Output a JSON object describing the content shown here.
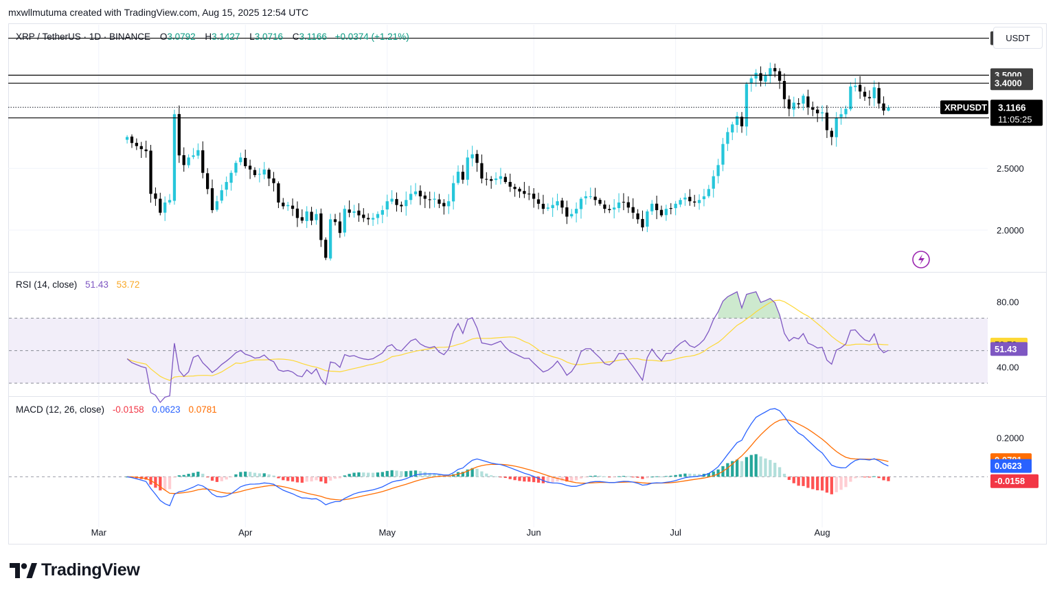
{
  "header": {
    "credit": "mxwllmutuma created with TradingView.com, Aug 15, 2025 12:54 UTC"
  },
  "legend": {
    "symbol": "XRP / TetherUS · 1D · BINANCE",
    "o_label": "O",
    "o": "3.0792",
    "h_label": "H",
    "h": "3.1427",
    "l_label": "L",
    "l": "3.0716",
    "c_label": "C",
    "c": "3.1166",
    "change": "+0.0374 (+1.21%)"
  },
  "price_scale": {
    "unit": "USDT"
  },
  "branding": {
    "name": "TradingView",
    "icon": "tradingview-logo-icon"
  },
  "chart_data": [
    {
      "type": "candlestick",
      "pane": "price",
      "y_scale": "log",
      "ylim": [
        1.72,
        4.2
      ],
      "x_range": [
        "2025-02-10",
        "2025-09-05"
      ],
      "last_candle_date": "2025-08-15",
      "y_ticks": [
        "2.0000",
        "2.5000"
      ],
      "x_ticks": [
        {
          "label": "Mar",
          "date": "2025-03-01"
        },
        {
          "label": "Apr",
          "date": "2025-04-01"
        },
        {
          "label": "May",
          "date": "2025-05-01"
        },
        {
          "label": "Jun",
          "date": "2025-06-01"
        },
        {
          "label": "Jul",
          "date": "2025-07-01"
        },
        {
          "label": "Aug",
          "date": "2025-08-01"
        }
      ],
      "horizontal_levels": [
        {
          "value": 4.0,
          "label": "4.0000"
        },
        {
          "value": 3.5,
          "label": "3.5000"
        },
        {
          "value": 3.4,
          "label": "3.4000"
        },
        {
          "value": 3.0,
          "label": "3.0000"
        }
      ],
      "current_price": {
        "value": 3.1166,
        "symbol_label": "XRPUSDT",
        "label": "3.1166",
        "countdown": "11:05:25"
      },
      "colors": {
        "up": "#26c6da",
        "down": "#000000",
        "levels": "#000000"
      },
      "closes": [
        2.8,
        2.74,
        2.71,
        2.68,
        2.66,
        2.28,
        2.24,
        2.13,
        2.21,
        2.23,
        3.04,
        2.62,
        2.53,
        2.6,
        2.62,
        2.67,
        2.46,
        2.32,
        2.15,
        2.22,
        2.31,
        2.38,
        2.46,
        2.55,
        2.6,
        2.52,
        2.49,
        2.44,
        2.45,
        2.49,
        2.41,
        2.37,
        2.21,
        2.18,
        2.19,
        2.16,
        2.09,
        2.07,
        2.14,
        2.07,
        2.12,
        1.93,
        1.81,
        2.08,
        2.06,
        1.98,
        2.16,
        2.13,
        2.14,
        2.11,
        2.09,
        2.08,
        2.09,
        2.12,
        2.15,
        2.22,
        2.24,
        2.19,
        2.18,
        2.23,
        2.28,
        2.3,
        2.26,
        2.24,
        2.23,
        2.24,
        2.2,
        2.18,
        2.22,
        2.37,
        2.47,
        2.4,
        2.6,
        2.63,
        2.55,
        2.41,
        2.4,
        2.39,
        2.41,
        2.43,
        2.38,
        2.34,
        2.32,
        2.3,
        2.28,
        2.28,
        2.24,
        2.2,
        2.16,
        2.17,
        2.19,
        2.22,
        2.17,
        2.1,
        2.12,
        2.16,
        2.24,
        2.26,
        2.26,
        2.23,
        2.2,
        2.16,
        2.15,
        2.17,
        2.21,
        2.21,
        2.17,
        2.13,
        2.08,
        2.02,
        2.14,
        2.2,
        2.15,
        2.11,
        2.16,
        2.16,
        2.2,
        2.23,
        2.25,
        2.22,
        2.21,
        2.23,
        2.26,
        2.32,
        2.43,
        2.53,
        2.73,
        2.85,
        2.93,
        3.02,
        2.91,
        3.39,
        3.46,
        3.53,
        3.43,
        3.5,
        3.59,
        3.55,
        3.43,
        3.21,
        3.1,
        3.17,
        3.15,
        3.25,
        3.12,
        3.09,
        3.05,
        3.06,
        2.87,
        2.8,
        3.0,
        3.04,
        3.1,
        3.36,
        3.37,
        3.3,
        3.24,
        3.22,
        3.35,
        3.16,
        3.08,
        3.1166
      ]
    },
    {
      "type": "line",
      "pane": "rsi",
      "title": "RSI (14, close)",
      "ylim": [
        22,
        98
      ],
      "y_ticks": [
        "80.00",
        "40.00"
      ],
      "band": [
        30,
        70
      ],
      "midline": 50,
      "series": [
        {
          "name": "RSI",
          "color": "#7e57c2",
          "last": "51.43",
          "last_value": 51.43
        },
        {
          "name": "RSI-based MA",
          "color": "#fdd835",
          "last": "53.72",
          "last_value": 53.72
        }
      ]
    },
    {
      "type": "macd",
      "pane": "macd",
      "title": "MACD (12, 26, close)",
      "ylim": [
        -0.26,
        0.41
      ],
      "y_ticks": [
        "0.2000"
      ],
      "series": [
        {
          "name": "Histogram",
          "last": "-0.0158",
          "last_value": -0.0158,
          "color": "#f23645"
        },
        {
          "name": "MACD",
          "last": "0.0623",
          "last_value": 0.0623,
          "color": "#2962ff"
        },
        {
          "name": "Signal",
          "last": "0.0781",
          "last_value": 0.0781,
          "color": "#ff6d00"
        }
      ],
      "histogram_colors": {
        "pos_up": "#26a69a",
        "pos_down": "#b2dfdb",
        "neg_down": "#ff5252",
        "neg_up": "#ffcdd2"
      }
    }
  ]
}
